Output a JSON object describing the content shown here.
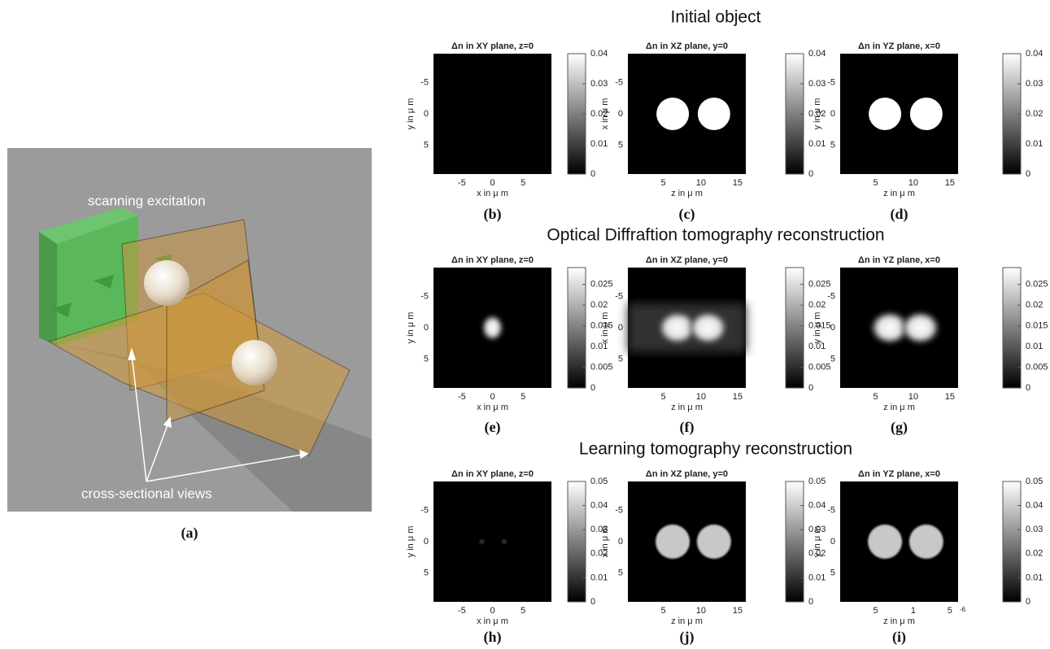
{
  "figure_a": {
    "label_top": "scanning excitation",
    "label_bottom": "cross-sectional views",
    "caption": "(a)"
  },
  "rows": [
    {
      "title": "Initial object",
      "panels": [
        {
          "title": "Δn in XY plane, z=0",
          "ylabel": "y in μ m",
          "xlabel": "x in μ m",
          "yticks": [
            "-5",
            "0",
            "5"
          ],
          "xticks": [
            "-5",
            "0",
            "5"
          ],
          "colorbar_ticks": [
            0,
            0.01,
            0.02,
            0.03,
            0.04
          ],
          "caption": "(b)"
        },
        {
          "title": "Δn in XZ plane, y=0",
          "ylabel": "x in μ m",
          "xlabel": "z in μ m",
          "yticks": [
            "-5",
            "0",
            "5"
          ],
          "xticks": [
            "5",
            "10",
            "15"
          ],
          "colorbar_ticks": [
            0,
            0.01,
            0.02,
            0.03,
            0.04
          ],
          "caption": "(c)"
        },
        {
          "title": "Δn in YZ plane, x=0",
          "ylabel": "y in μ m",
          "xlabel": "z in μ m",
          "yticks": [
            "-5",
            "0",
            "5"
          ],
          "xticks": [
            "5",
            "10",
            "15"
          ],
          "colorbar_ticks": [
            0,
            0.01,
            0.02,
            0.03,
            0.04
          ],
          "caption": "(d)"
        }
      ]
    },
    {
      "title": "Optical Diffraftion tomography reconstruction",
      "panels": [
        {
          "title": "Δn in XY plane, z=0",
          "ylabel": "y in μ m",
          "xlabel": "x in μ m",
          "yticks": [
            "-5",
            "0",
            "5"
          ],
          "xticks": [
            "-5",
            "0",
            "5"
          ],
          "colorbar_ticks": [
            0,
            0.005,
            0.01,
            0.015,
            0.02,
            0.025
          ],
          "caption": "(e)"
        },
        {
          "title": "Δn in XZ plane, y=0",
          "ylabel": "x in μ m",
          "xlabel": "z in μ m",
          "yticks": [
            "-5",
            "0",
            "5"
          ],
          "xticks": [
            "5",
            "10",
            "15"
          ],
          "colorbar_ticks": [
            0,
            0.005,
            0.01,
            0.015,
            0.02,
            0.025
          ],
          "caption": "(f)"
        },
        {
          "title": "Δn in YZ plane, x=0",
          "ylabel": "y in μ m",
          "xlabel": "z in μ m",
          "yticks": [
            "-5",
            "0",
            "5"
          ],
          "xticks": [
            "5",
            "10",
            "15"
          ],
          "colorbar_ticks": [
            0,
            0.005,
            0.01,
            0.015,
            0.02,
            0.025
          ],
          "caption": "(g)"
        }
      ]
    },
    {
      "title": "Learning tomography reconstruction",
      "panels": [
        {
          "title": "Δn in XY plane, z=0",
          "ylabel": "y in μ m",
          "xlabel": "x in μ m",
          "yticks": [
            "-5",
            "0",
            "5"
          ],
          "xticks": [
            "-5",
            "0",
            "5"
          ],
          "colorbar_ticks": [
            0,
            0.01,
            0.02,
            0.03,
            0.04,
            0.05
          ],
          "caption": "(h)"
        },
        {
          "title": "Δn in XZ plane, y=0",
          "ylabel": "x in μ m",
          "xlabel": "z in μ m",
          "yticks": [
            "-5",
            "0",
            "5"
          ],
          "xticks": [
            "5",
            "10",
            "15"
          ],
          "colorbar_ticks": [
            0,
            0.01,
            0.02,
            0.03,
            0.04,
            0.05
          ],
          "caption": "(j)"
        },
        {
          "title": "Δn in YZ plane, x=0",
          "ylabel": "y in μ m",
          "xlabel": "z in μ m",
          "yticks": [
            "-5",
            "0",
            "5"
          ],
          "xticks": [
            "5",
            "1",
            "5"
          ],
          "offset_label": "-6",
          "colorbar_ticks": [
            0,
            0.01,
            0.02,
            0.03,
            0.04,
            0.05
          ],
          "caption": "(i)"
        }
      ]
    }
  ]
}
